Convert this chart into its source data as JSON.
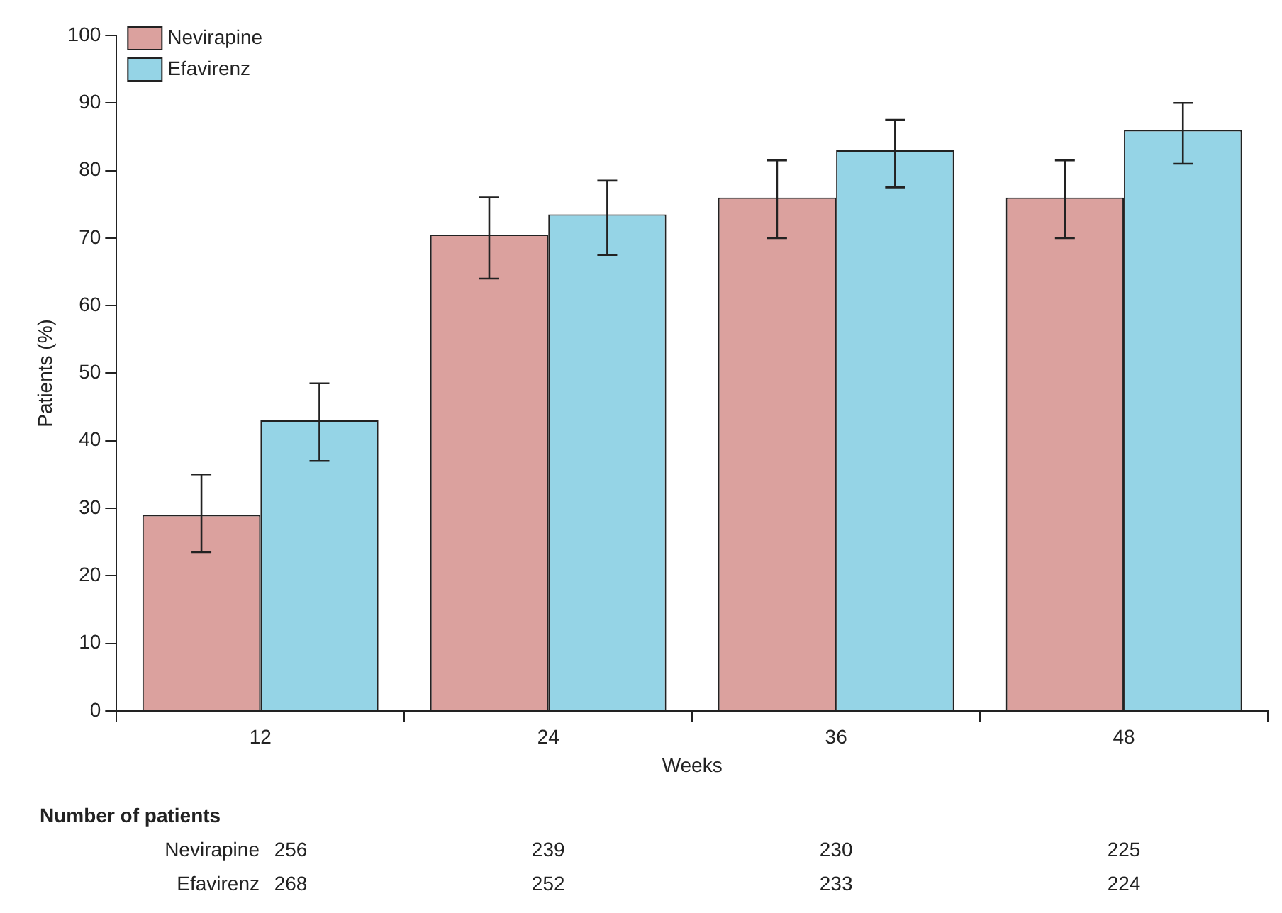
{
  "chart_data": {
    "type": "bar",
    "xlabel": "Weeks",
    "ylabel": "Patients (%)",
    "categories": [
      "12",
      "24",
      "36",
      "48"
    ],
    "series": [
      {
        "name": "Nevirapine",
        "color": "#dba19e",
        "values": [
          29,
          70.5,
          76,
          76
        ],
        "errors": [
          [
            23.5,
            35
          ],
          [
            64,
            76
          ],
          [
            70,
            81.5
          ],
          [
            70,
            81.5
          ]
        ]
      },
      {
        "name": "Efavirenz",
        "color": "#95d4e6",
        "values": [
          43,
          73.5,
          83,
          86
        ],
        "errors": [
          [
            37,
            48.5
          ],
          [
            67.5,
            78.5
          ],
          [
            77.5,
            87.5
          ],
          [
            81,
            90
          ]
        ]
      }
    ],
    "ylim": [
      0,
      100
    ],
    "yticks": [
      0,
      10,
      20,
      30,
      40,
      50,
      60,
      70,
      80,
      90,
      100
    ],
    "legend": "top left",
    "annotations": [
      "Number of patients",
      "Nevirapine",
      "256",
      "239",
      "230",
      "225",
      "Efavirenz",
      "268",
      "252",
      "233",
      "224"
    ]
  }
}
